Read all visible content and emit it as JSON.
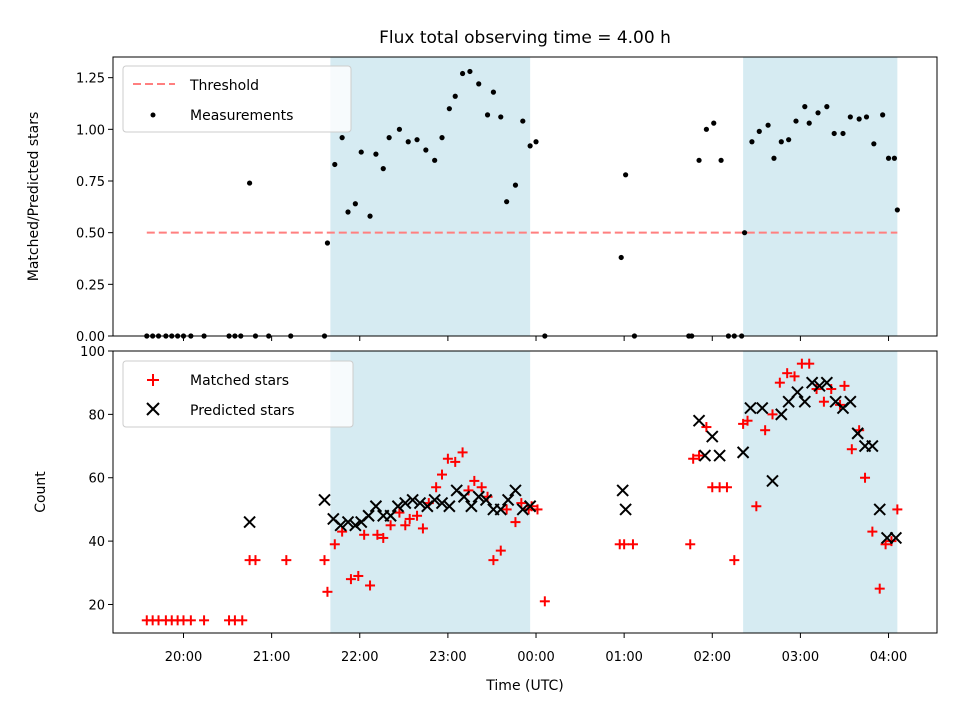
{
  "chart_data": [
    {
      "type": "scatter",
      "title": "Flux total observing time = 4.00 h",
      "xlabel": "",
      "ylabel": "Matched/Predicted stars",
      "ylim": [
        0,
        1.35
      ],
      "xlim": [
        "19:12",
        "04:33"
      ],
      "yticks": [
        "0.00",
        "0.25",
        "0.50",
        "0.75",
        "1.00",
        "1.25"
      ],
      "grid": false,
      "legend_position": "top-left",
      "shaded_intervals": [
        [
          "21:40",
          "23:56"
        ],
        [
          "02:21",
          "04:06"
        ]
      ],
      "threshold": {
        "name": "Threshold",
        "value": 0.5,
        "x_start": "19:35",
        "x_end": "04:06",
        "color": "#ff7f7f"
      },
      "series": [
        {
          "name": "Measurements",
          "color": "#000000",
          "x": [
            "19:35",
            "19:39",
            "19:43",
            "19:48",
            "19:52",
            "19:56",
            "20:00",
            "20:05",
            "20:14",
            "20:31",
            "20:35",
            "20:39",
            "20:45",
            "20:49",
            "20:58",
            "21:13",
            "21:36",
            "21:38",
            "21:43",
            "21:48",
            "21:52",
            "21:57",
            "22:01",
            "22:07",
            "22:11",
            "22:16",
            "22:20",
            "22:27",
            "22:33",
            "22:39",
            "22:45",
            "22:51",
            "22:56",
            "23:01",
            "23:05",
            "23:10",
            "23:15",
            "23:21",
            "23:27",
            "23:31",
            "23:36",
            "23:40",
            "23:46",
            "23:51",
            "23:56",
            "00:00",
            "00:06",
            "00:58",
            "01:01",
            "01:07",
            "01:44",
            "01:46",
            "01:51",
            "01:56",
            "02:01",
            "02:06",
            "02:11",
            "02:15",
            "02:20",
            "02:22",
            "02:27",
            "02:32",
            "02:38",
            "02:42",
            "02:47",
            "02:52",
            "02:57",
            "03:03",
            "03:06",
            "03:12",
            "03:18",
            "03:23",
            "03:29",
            "03:34",
            "03:40",
            "03:45",
            "03:50",
            "03:56",
            "04:00",
            "04:04",
            "04:06"
          ],
          "y": [
            0,
            0,
            0,
            0,
            0,
            0,
            0,
            0,
            0,
            0,
            0,
            0,
            0.74,
            0,
            0,
            0,
            0,
            0.45,
            0.83,
            0.96,
            0.6,
            0.64,
            0.89,
            0.58,
            0.88,
            0.81,
            0.96,
            1.0,
            0.94,
            0.95,
            0.9,
            0.85,
            0.96,
            1.1,
            1.16,
            1.27,
            1.28,
            1.22,
            1.07,
            1.18,
            1.06,
            0.65,
            0.73,
            1.04,
            0.92,
            0.94,
            0,
            0.38,
            0.78,
            0,
            0,
            0,
            0.85,
            1.0,
            1.03,
            0.85,
            0,
            0,
            0,
            0.5,
            0.94,
            0.99,
            1.02,
            0.86,
            0.94,
            0.95,
            1.04,
            1.11,
            1.03,
            1.08,
            1.11,
            0.98,
            0.98,
            1.06,
            1.05,
            1.06,
            0.93,
            1.07,
            0.86,
            0.86,
            0.61
          ]
        }
      ]
    },
    {
      "type": "scatter",
      "title": "",
      "xlabel": "Time (UTC)",
      "ylabel": "Count",
      "ylim": [
        11,
        100
      ],
      "xlim": [
        "19:12",
        "04:33"
      ],
      "xticks": [
        "20:00",
        "21:00",
        "22:00",
        "23:00",
        "00:00",
        "01:00",
        "02:00",
        "03:00",
        "04:00"
      ],
      "yticks": [
        "20",
        "40",
        "60",
        "80",
        "100"
      ],
      "grid": false,
      "legend_position": "top-left",
      "shaded_intervals": [
        [
          "21:40",
          "23:56"
        ],
        [
          "02:21",
          "04:06"
        ]
      ],
      "series": [
        {
          "name": "Matched stars",
          "color": "#ff0000",
          "marker": "+",
          "x": [
            "19:35",
            "19:39",
            "19:43",
            "19:48",
            "19:52",
            "19:56",
            "20:00",
            "20:05",
            "20:14",
            "20:31",
            "20:35",
            "20:40",
            "20:45",
            "20:49",
            "21:10",
            "21:36",
            "21:38",
            "21:43",
            "21:48",
            "21:54",
            "21:59",
            "22:03",
            "22:07",
            "22:12",
            "22:16",
            "22:21",
            "22:27",
            "22:31",
            "22:34",
            "22:39",
            "22:43",
            "22:47",
            "22:52",
            "22:56",
            "23:00",
            "23:05",
            "23:10",
            "23:14",
            "23:18",
            "23:23",
            "23:27",
            "23:31",
            "23:36",
            "23:40",
            "23:46",
            "23:50",
            "23:55",
            "23:57",
            "00:01",
            "00:06",
            "00:57",
            "01:00",
            "01:06",
            "01:45",
            "01:47",
            "01:51",
            "01:56",
            "02:00",
            "02:05",
            "02:10",
            "02:15",
            "02:21",
            "02:24",
            "02:30",
            "02:36",
            "02:41",
            "02:46",
            "02:51",
            "02:56",
            "03:01",
            "03:06",
            "03:11",
            "03:16",
            "03:21",
            "03:27",
            "03:30",
            "03:35",
            "03:40",
            "03:44",
            "03:49",
            "03:54",
            "03:58",
            "04:02",
            "04:06"
          ],
          "y": [
            15,
            15,
            15,
            15,
            15,
            15,
            15,
            15,
            15,
            15,
            15,
            15,
            34,
            34,
            34,
            34,
            24,
            39,
            43,
            28,
            29,
            42,
            26,
            42,
            41,
            45,
            49,
            45,
            47,
            48,
            44,
            52,
            57,
            61,
            66,
            65,
            68,
            56,
            59,
            57,
            54,
            34,
            37,
            50,
            46,
            52,
            50,
            51,
            50,
            21,
            39,
            39,
            39,
            39,
            66,
            67,
            76,
            57,
            57,
            57,
            34,
            77,
            78,
            51,
            75,
            80,
            90,
            93,
            92,
            96,
            96,
            88,
            84,
            88,
            83,
            89,
            69,
            75,
            60,
            43,
            25,
            39,
            40,
            50
          ]
        },
        {
          "name": "Predicted stars",
          "color": "#000000",
          "marker": "x",
          "x": [
            "20:45",
            "21:36",
            "21:42",
            "21:47",
            "21:52",
            "21:57",
            "22:01",
            "22:06",
            "22:11",
            "22:16",
            "22:21",
            "22:26",
            "22:31",
            "22:36",
            "22:41",
            "22:46",
            "22:51",
            "22:56",
            "23:01",
            "23:06",
            "23:11",
            "23:16",
            "23:21",
            "23:26",
            "23:31",
            "23:36",
            "23:41",
            "23:46",
            "23:51",
            "23:56",
            "00:59",
            "01:01",
            "01:51",
            "01:55",
            "02:00",
            "02:05",
            "02:21",
            "02:26",
            "02:34",
            "02:41",
            "02:47",
            "02:52",
            "02:58",
            "03:03",
            "03:08",
            "03:13",
            "03:18",
            "03:24",
            "03:29",
            "03:34",
            "03:39",
            "03:44",
            "03:49",
            "03:54",
            "03:59",
            "04:05"
          ],
          "y": [
            46,
            53,
            47,
            45,
            46,
            45,
            46,
            48,
            51,
            48,
            48,
            51,
            52,
            53,
            52,
            51,
            53,
            52,
            51,
            56,
            54,
            51,
            54,
            53,
            50,
            50,
            53,
            56,
            50,
            51,
            56,
            50,
            78,
            67,
            73,
            67,
            68,
            82,
            82,
            59,
            80,
            84,
            87,
            84,
            90,
            89,
            90,
            84,
            82,
            84,
            74,
            70,
            70,
            50,
            41,
            41
          ]
        }
      ]
    }
  ],
  "legend": {
    "threshold_label": "Threshold",
    "measurements_label": "Measurements",
    "matched_label": "Matched stars",
    "predicted_label": "Predicted stars"
  }
}
